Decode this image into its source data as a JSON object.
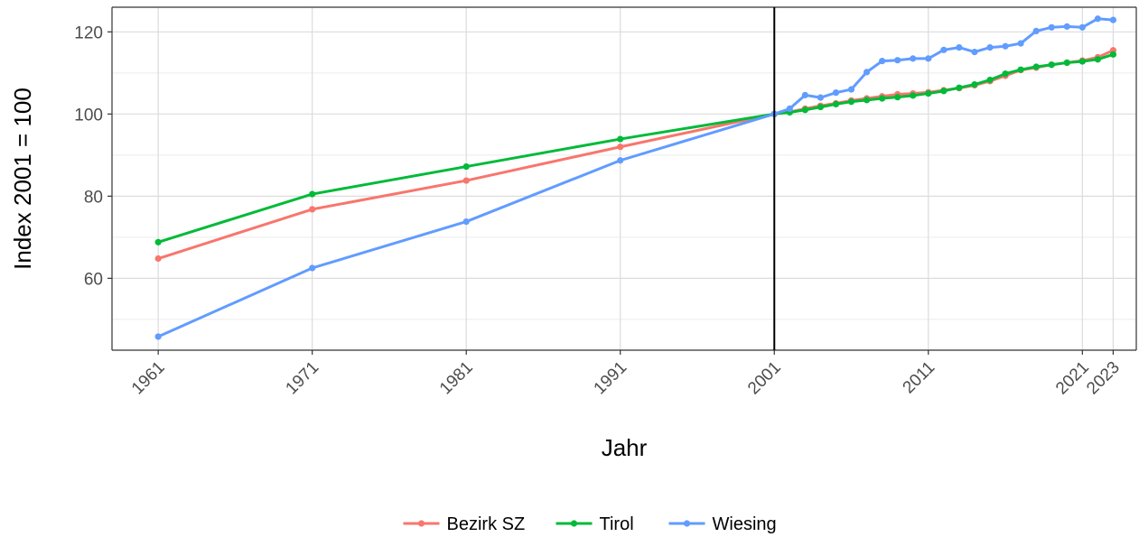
{
  "chart_data": {
    "type": "line",
    "title": "",
    "xlabel": "Jahr",
    "ylabel": "Index 2001 = 100",
    "xlim": [
      1958,
      2024.5
    ],
    "ylim": [
      42.5,
      126
    ],
    "x_ticks": [
      1961,
      1971,
      1981,
      1991,
      2001,
      2011,
      2021,
      2023
    ],
    "x_tick_labels": [
      "1961",
      "1971",
      "1981",
      "1991",
      "2001",
      "2011",
      "2021",
      "2023"
    ],
    "y_ticks": [
      60,
      80,
      100,
      120
    ],
    "y_tick_labels": [
      "60",
      "80",
      "100",
      "120"
    ],
    "grid": true,
    "reference_line": {
      "x": 2001,
      "color": "#000000"
    },
    "legend_position": "bottom",
    "series": [
      {
        "name": "Bezirk SZ",
        "color": "#F8766D",
        "x": [
          1961,
          1971,
          1981,
          1991,
          2001,
          2002,
          2003,
          2004,
          2005,
          2006,
          2007,
          2008,
          2009,
          2010,
          2011,
          2012,
          2013,
          2014,
          2015,
          2016,
          2017,
          2018,
          2019,
          2020,
          2021,
          2022,
          2023
        ],
        "y": [
          64.8,
          76.8,
          83.8,
          92.0,
          100,
          100.5,
          101.3,
          102.0,
          102.6,
          103.3,
          103.8,
          104.3,
          104.8,
          105.0,
          105.3,
          105.8,
          106.3,
          107.0,
          108.0,
          109.3,
          110.7,
          111.3,
          112.0,
          112.5,
          113.0,
          113.8,
          115.5
        ]
      },
      {
        "name": "Tirol",
        "color": "#00BA38",
        "x": [
          1961,
          1971,
          1981,
          1991,
          2001,
          2002,
          2003,
          2004,
          2005,
          2006,
          2007,
          2008,
          2009,
          2010,
          2011,
          2012,
          2013,
          2014,
          2015,
          2016,
          2017,
          2018,
          2019,
          2020,
          2021,
          2022,
          2023
        ],
        "y": [
          68.8,
          80.5,
          87.2,
          93.9,
          100,
          100.4,
          101.0,
          101.7,
          102.4,
          103.0,
          103.4,
          103.8,
          104.1,
          104.5,
          105.0,
          105.6,
          106.4,
          107.2,
          108.3,
          109.8,
          110.8,
          111.5,
          112.0,
          112.5,
          112.8,
          113.3,
          114.5
        ]
      },
      {
        "name": "Wiesing",
        "color": "#619CFF",
        "x": [
          1961,
          1971,
          1981,
          1991,
          2001,
          2002,
          2003,
          2004,
          2005,
          2006,
          2007,
          2008,
          2009,
          2010,
          2011,
          2012,
          2013,
          2014,
          2015,
          2016,
          2017,
          2018,
          2019,
          2020,
          2021,
          2022,
          2023
        ],
        "y": [
          45.8,
          62.5,
          73.8,
          88.7,
          100,
          101.3,
          104.6,
          104.0,
          105.2,
          106.0,
          110.2,
          112.9,
          113.1,
          113.5,
          113.5,
          115.6,
          116.2,
          115.1,
          116.2,
          116.5,
          117.2,
          120.2,
          121.1,
          121.3,
          121.1,
          123.2,
          122.9
        ]
      }
    ]
  }
}
